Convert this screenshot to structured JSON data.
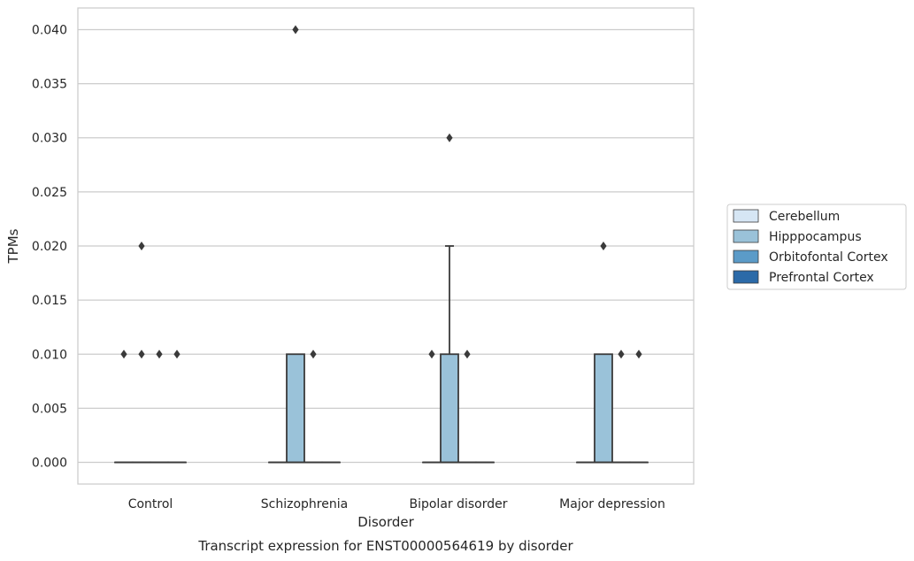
{
  "chart_data": {
    "type": "boxplot",
    "caption": "Transcript expression for ENST00000564619 by disorder",
    "xlabel": "Disorder",
    "ylabel": "TPMs",
    "ylim": [
      -0.002,
      0.042
    ],
    "yticks": [
      "0.000",
      "0.005",
      "0.010",
      "0.015",
      "0.020",
      "0.025",
      "0.030",
      "0.035",
      "0.040"
    ],
    "ytick_values": [
      0,
      0.005,
      0.01,
      0.015,
      0.02,
      0.025,
      0.03,
      0.035,
      0.04
    ],
    "grid": "horizontal",
    "legend_position": "right",
    "categories": [
      "Control",
      "Schizophrenia",
      "Bipolar disorder",
      "Major depression"
    ],
    "series": [
      {
        "name": "Cerebellum",
        "color": "#d6e6f4",
        "boxes": [
          {
            "q1": 0,
            "median": 0,
            "q3": 0,
            "whisker_low": 0,
            "whisker_high": 0,
            "outliers": [
              0.01
            ]
          },
          {
            "q1": 0,
            "median": 0,
            "q3": 0,
            "whisker_low": 0,
            "whisker_high": 0,
            "outliers": []
          },
          {
            "q1": 0,
            "median": 0,
            "q3": 0,
            "whisker_low": 0,
            "whisker_high": 0,
            "outliers": [
              0.01
            ]
          },
          {
            "q1": 0,
            "median": 0,
            "q3": 0,
            "whisker_low": 0,
            "whisker_high": 0,
            "outliers": []
          }
        ]
      },
      {
        "name": "Hipppocampus",
        "color": "#9ac2d9",
        "boxes": [
          {
            "q1": 0,
            "median": 0,
            "q3": 0,
            "whisker_low": 0,
            "whisker_high": 0,
            "outliers": [
              0.01,
              0.02
            ]
          },
          {
            "q1": 0,
            "median": 0,
            "q3": 0.01,
            "whisker_low": 0,
            "whisker_high": 0.01,
            "outliers": [
              0.04
            ]
          },
          {
            "q1": 0,
            "median": 0,
            "q3": 0.01,
            "whisker_low": 0,
            "whisker_high": 0.02,
            "outliers": [
              0.03
            ]
          },
          {
            "q1": 0,
            "median": 0,
            "q3": 0.01,
            "whisker_low": 0,
            "whisker_high": 0.01,
            "outliers": [
              0.02
            ]
          }
        ]
      },
      {
        "name": "Orbitofontal Cortex",
        "color": "#5b9bc8",
        "boxes": [
          {
            "q1": 0,
            "median": 0,
            "q3": 0,
            "whisker_low": 0,
            "whisker_high": 0,
            "outliers": [
              0.01
            ]
          },
          {
            "q1": 0,
            "median": 0,
            "q3": 0,
            "whisker_low": 0,
            "whisker_high": 0,
            "outliers": [
              0.01
            ]
          },
          {
            "q1": 0,
            "median": 0,
            "q3": 0,
            "whisker_low": 0,
            "whisker_high": 0,
            "outliers": [
              0.01
            ]
          },
          {
            "q1": 0,
            "median": 0,
            "q3": 0,
            "whisker_low": 0,
            "whisker_high": 0,
            "outliers": [
              0.01
            ]
          }
        ]
      },
      {
        "name": "Prefrontal Cortex",
        "color": "#2b6aa8",
        "boxes": [
          {
            "q1": 0,
            "median": 0,
            "q3": 0,
            "whisker_low": 0,
            "whisker_high": 0,
            "outliers": [
              0.01
            ]
          },
          {
            "q1": 0,
            "median": 0,
            "q3": 0,
            "whisker_low": 0,
            "whisker_high": 0,
            "outliers": []
          },
          {
            "q1": 0,
            "median": 0,
            "q3": 0,
            "whisker_low": 0,
            "whisker_high": 0,
            "outliers": []
          },
          {
            "q1": 0,
            "median": 0,
            "q3": 0,
            "whisker_low": 0,
            "whisker_high": 0,
            "outliers": [
              0.01
            ]
          }
        ]
      }
    ]
  }
}
